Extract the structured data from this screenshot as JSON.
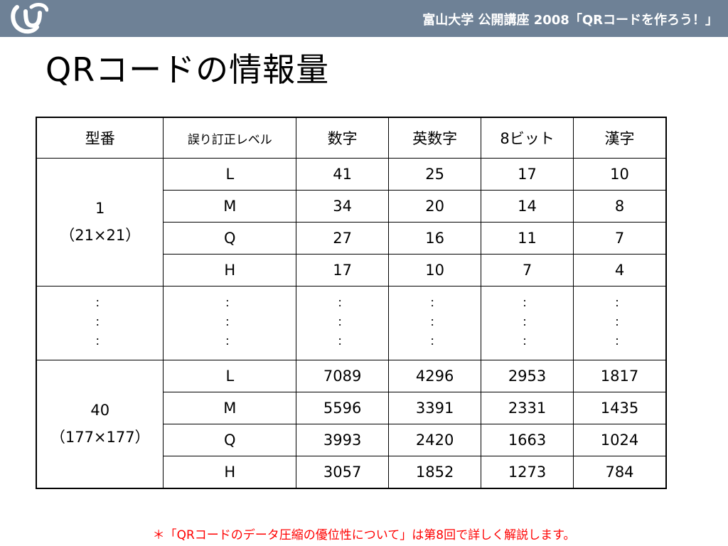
{
  "header": {
    "title": "富山大学 公開講座 2008「QRコードを作ろう！」",
    "logo_icon": "university-logo-icon",
    "bar_color": "#6e8196"
  },
  "page_title": "QRコードの情報量",
  "table": {
    "headers": [
      "型番",
      "誤り訂正レベル",
      "数字",
      "英数字",
      "8ビット",
      "漢字"
    ],
    "groups": [
      {
        "version": "1",
        "size": "（21×21）",
        "rows": [
          {
            "level": "L",
            "numeric": "41",
            "alnum": "25",
            "byte": "17",
            "kanji": "10"
          },
          {
            "level": "M",
            "numeric": "34",
            "alnum": "20",
            "byte": "14",
            "kanji": "8"
          },
          {
            "level": "Q",
            "numeric": "27",
            "alnum": "16",
            "byte": "11",
            "kanji": "7"
          },
          {
            "level": "H",
            "numeric": "17",
            "alnum": "10",
            "byte": "7",
            "kanji": "4"
          }
        ]
      },
      {
        "version": "40",
        "size": "（177×177）",
        "rows": [
          {
            "level": "L",
            "numeric": "7089",
            "alnum": "4296",
            "byte": "2953",
            "kanji": "1817"
          },
          {
            "level": "M",
            "numeric": "5596",
            "alnum": "3391",
            "byte": "2331",
            "kanji": "1435"
          },
          {
            "level": "Q",
            "numeric": "3993",
            "alnum": "2420",
            "byte": "1663",
            "kanji": "1024"
          },
          {
            "level": "H",
            "numeric": "3057",
            "alnum": "1852",
            "byte": "1273",
            "kanji": "784"
          }
        ]
      }
    ],
    "ellipsis": "：\n：\n："
  },
  "footnote": "＊「QRコードのデータ圧縮の優位性について」は第8回で詳しく解説します。",
  "footnote_color": "#ff0000"
}
